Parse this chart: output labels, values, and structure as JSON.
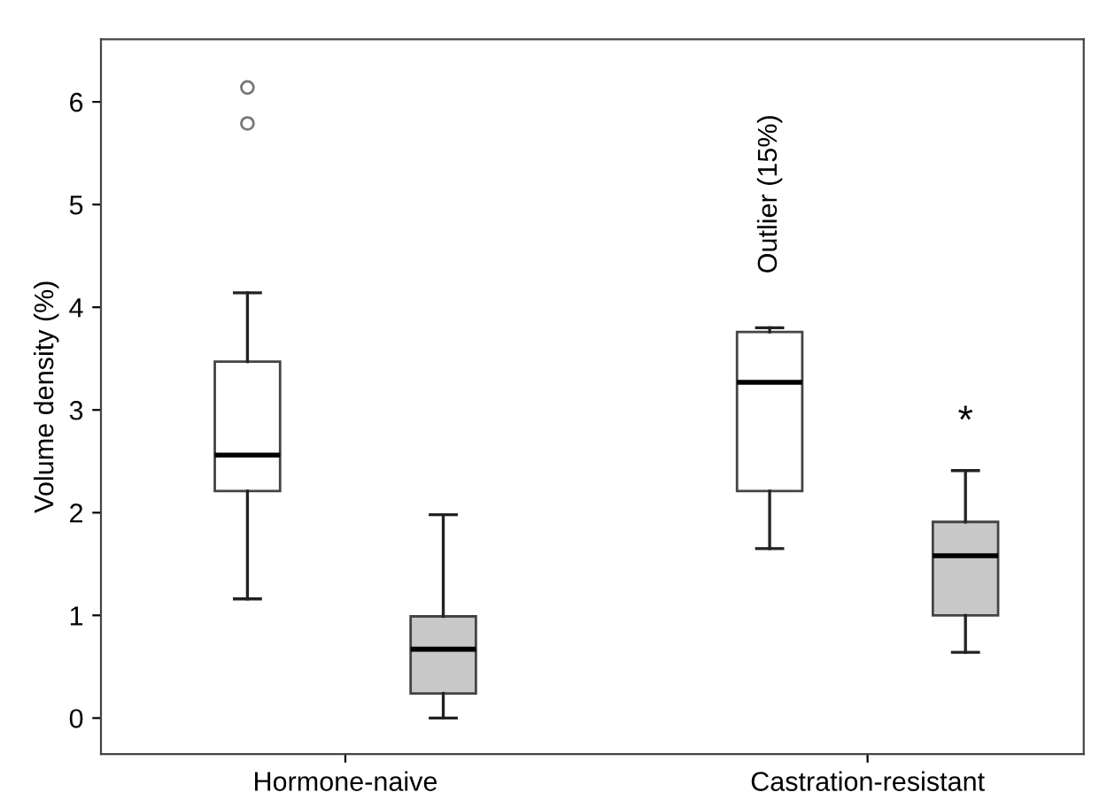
{
  "chart_data": {
    "type": "box",
    "ylabel": "Volume density (%)",
    "categories": [
      "Hormone-naive",
      "Castration-resistant"
    ],
    "ylim": [
      -0.35,
      6.61
    ],
    "yticks": [
      0,
      1,
      2,
      3,
      4,
      5,
      6
    ],
    "grid": false,
    "series": [
      {
        "color": "#ffffff",
        "boxes": [
          {
            "low": 1.16,
            "q1": 2.21,
            "median": 2.56,
            "q3": 3.47,
            "high": 4.14,
            "outliers": [
              5.79,
              6.14
            ]
          },
          {
            "low": 1.65,
            "q1": 2.21,
            "median": 3.27,
            "q3": 3.76,
            "high": 3.8
          }
        ]
      },
      {
        "color": "#c8c8c8",
        "boxes": [
          {
            "low": 0,
            "q1": 0.24,
            "median": 0.67,
            "q3": 0.99,
            "high": 1.98
          },
          {
            "low": 0.64,
            "q1": 1.0,
            "median": 1.58,
            "q3": 1.91,
            "high": 2.41
          }
        ]
      }
    ],
    "annotations": [
      "Outlier (15%)",
      "*"
    ]
  }
}
